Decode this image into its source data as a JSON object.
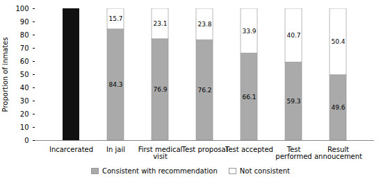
{
  "chart_data": {
    "type": "bar",
    "categories": [
      "Incarcerated",
      "In jail",
      "First medical\nvisit",
      "Test proposal",
      "Test accepted",
      "Test\nperformed",
      "Result\nannoucement"
    ],
    "series": [
      {
        "name": "Consistent with recommendation",
        "color": "#aaaaaa",
        "colors": [
          "#111111",
          "#aaaaaa",
          "#aaaaaa",
          "#aaaaaa",
          "#aaaaaa",
          "#aaaaaa",
          "#aaaaaa"
        ],
        "values": [
          100,
          84.3,
          76.9,
          76.2,
          66.1,
          59.3,
          49.6
        ],
        "value_labels": [
          null,
          "84.3",
          "76.9",
          "76.2",
          "66.1",
          "59.3",
          "49.6"
        ]
      },
      {
        "name": "Not consistent",
        "color": "#ffffff",
        "values": [
          0,
          15.7,
          23.1,
          23.8,
          33.9,
          40.7,
          50.4
        ],
        "value_labels": [
          null,
          "15.7",
          "23.1",
          "23.8",
          "33.9",
          "40.7",
          "50.4"
        ]
      }
    ],
    "ylabel": "Proportion of inmates",
    "ylim": [
      0,
      100
    ],
    "yticks": [
      0,
      10,
      20,
      30,
      40,
      50,
      60,
      70,
      80,
      90,
      100
    ],
    "stacked": true,
    "data_labels": true,
    "grid": false,
    "legend": "bottom"
  }
}
